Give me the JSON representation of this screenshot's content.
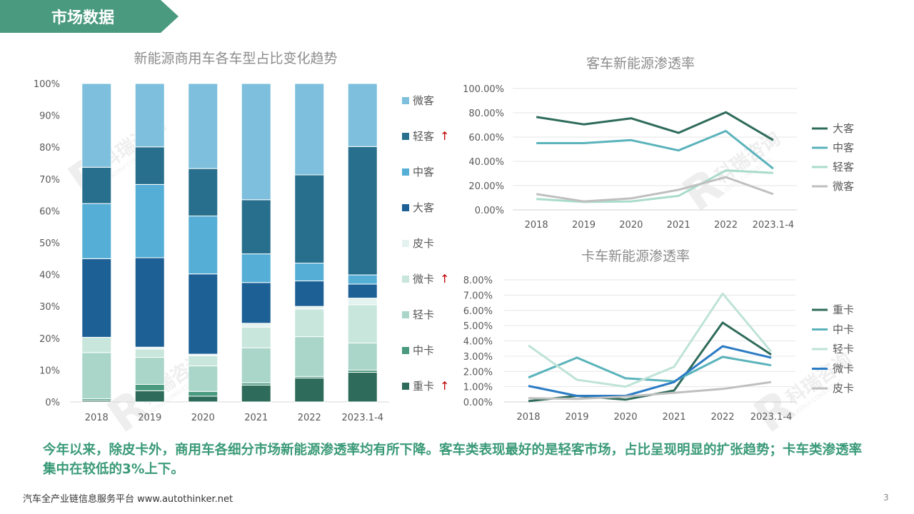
{
  "header": {
    "title": "市场数据"
  },
  "colors": {
    "banner": "#4a9a7f",
    "summary_text": "#3a9a78",
    "arrow": "#c00000",
    "stack": [
      "#2e6b5a",
      "#4a9a7f",
      "#a9d6c8",
      "#c8e6dc",
      "#e4f3ef",
      "#1d6095",
      "#55aed6",
      "#276f8c",
      "#7dbfdc"
    ],
    "bus_lines": [
      "#2e6b5a",
      "#5ab3bb",
      "#a9dcc9",
      "#bfbfbf"
    ],
    "truck_lines": [
      "#2e6b5a",
      "#5ab3bb",
      "#bfe3d6",
      "#2b7bc4",
      "#bfbfbf"
    ]
  },
  "chart_data": [
    {
      "type": "bar",
      "stacked": true,
      "title": "新能源商用车各车型占比变化趋势",
      "categories": [
        "2018",
        "2019",
        "2020",
        "2021",
        "2022",
        "2023.1-4"
      ],
      "ylim": [
        0,
        100
      ],
      "yticks": [
        "0%",
        "10%",
        "20%",
        "30%",
        "40%",
        "50%",
        "60%",
        "70%",
        "80%",
        "90%",
        "100%"
      ],
      "legend_position": "right",
      "series": [
        {
          "name": "重卡",
          "arrow": "↑",
          "values": [
            0.5,
            3.5,
            1.8,
            5.3,
            7.5,
            9.3
          ]
        },
        {
          "name": "中卡",
          "arrow": "",
          "values": [
            0.5,
            2.0,
            1.5,
            0.7,
            0.5,
            0.7
          ]
        },
        {
          "name": "轻卡",
          "arrow": "",
          "values": [
            14.5,
            8.5,
            8.0,
            11.0,
            12.5,
            8.5
          ]
        },
        {
          "name": "微卡",
          "arrow": "↑",
          "values": [
            4.8,
            2.6,
            3.2,
            6.5,
            8.7,
            12.0
          ]
        },
        {
          "name": "皮卡",
          "arrow": "",
          "values": [
            0,
            0.6,
            0.5,
            1.2,
            0.8,
            2.1
          ]
        },
        {
          "name": "大客",
          "arrow": "",
          "values": [
            24.7,
            28.1,
            25.2,
            12.8,
            8.0,
            4.4
          ]
        },
        {
          "name": "中客",
          "arrow": "",
          "values": [
            17.3,
            23.0,
            18.2,
            9.0,
            5.6,
            2.9
          ]
        },
        {
          "name": "轻客",
          "arrow": "↑",
          "values": [
            11.4,
            11.8,
            14.9,
            17.0,
            27.7,
            40.3
          ]
        },
        {
          "name": "微客",
          "arrow": "",
          "values": [
            26.3,
            19.9,
            26.7,
            36.5,
            28.7,
            19.8
          ]
        }
      ],
      "legend_order": [
        "微客",
        "轻客",
        "中客",
        "大客",
        "皮卡",
        "微卡",
        "轻卡",
        "中卡",
        "重卡"
      ]
    },
    {
      "type": "line",
      "title": "客车新能源渗透率",
      "categories": [
        "2018",
        "2019",
        "2020",
        "2021",
        "2022",
        "2023.1-4"
      ],
      "ylim": [
        0,
        100
      ],
      "yticks": [
        "0.00%",
        "20.00%",
        "40.00%",
        "60.00%",
        "80.00%",
        "100.00%"
      ],
      "grid": true,
      "legend_position": "right",
      "series": [
        {
          "name": "大客",
          "values": [
            76.5,
            70.5,
            75.5,
            63.5,
            80.5,
            57.5
          ]
        },
        {
          "name": "中客",
          "values": [
            55.0,
            55.0,
            57.5,
            49.0,
            65.0,
            34.0
          ]
        },
        {
          "name": "轻客",
          "values": [
            9.0,
            6.5,
            7.0,
            11.5,
            32.5,
            30.5
          ]
        },
        {
          "name": "微客",
          "values": [
            13.0,
            7.0,
            9.5,
            16.5,
            27.0,
            13.0
          ]
        }
      ]
    },
    {
      "type": "line",
      "title": "卡车新能源渗透率",
      "categories": [
        "2018",
        "2019",
        "2020",
        "2021",
        "2022",
        "2023.1-4"
      ],
      "ylim": [
        0,
        8
      ],
      "yticks": [
        "0.00%",
        "1.00%",
        "2.00%",
        "3.00%",
        "4.00%",
        "5.00%",
        "6.00%",
        "7.00%",
        "8.00%"
      ],
      "grid": true,
      "legend_position": "right",
      "series": [
        {
          "name": "重卡",
          "values": [
            0.05,
            0.4,
            0.15,
            0.75,
            5.2,
            3.1
          ]
        },
        {
          "name": "中卡",
          "values": [
            1.6,
            2.9,
            1.55,
            1.35,
            2.95,
            2.4
          ]
        },
        {
          "name": "轻卡",
          "values": [
            3.7,
            1.45,
            1.0,
            2.3,
            7.1,
            3.3
          ]
        },
        {
          "name": "微卡",
          "values": [
            1.05,
            0.4,
            0.4,
            1.3,
            3.65,
            2.9
          ]
        },
        {
          "name": "皮卡",
          "values": [
            0.25,
            0.2,
            0.35,
            0.6,
            0.85,
            1.3
          ]
        }
      ]
    }
  ],
  "summary": "今年以来，除皮卡外，商用车各细分市场新能源渗透率均有所下降。客车类表现最好的是轻客市场，占比呈现明显的扩张趋势；卡车类渗透率集中在较低的3%上下。",
  "footer": {
    "text": "汽车全产业链信息服务平台 www.autothinker.net",
    "page_number": "3"
  },
  "watermark": {
    "text": "科瑞咨询",
    "sub": "KERUI CONSULTING"
  }
}
